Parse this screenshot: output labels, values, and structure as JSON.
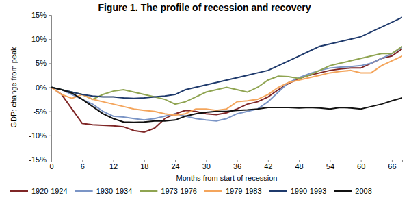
{
  "chart_data": {
    "type": "line",
    "title": "Figure 1. The profile of recession and recovery",
    "x_label": "Months from start of recession",
    "y_label": "GDP: change from peak",
    "x": [
      0,
      2,
      4,
      6,
      8,
      10,
      12,
      14,
      16,
      18,
      20,
      22,
      24,
      26,
      28,
      30,
      32,
      34,
      36,
      38,
      40,
      42,
      44,
      46,
      48,
      50,
      52,
      54,
      56,
      58,
      60,
      62,
      64,
      66,
      68
    ],
    "xlim": [
      0,
      68
    ],
    "xticks": [
      0,
      6,
      12,
      18,
      24,
      30,
      36,
      42,
      48,
      54,
      60,
      66
    ],
    "ylim": [
      -15,
      15
    ],
    "yticks": [
      {
        "value": -15,
        "label": "-15%"
      },
      {
        "value": -10,
        "label": "-10%"
      },
      {
        "value": -5,
        "label": "-5%"
      },
      {
        "value": 0,
        "label": "0%"
      },
      {
        "value": 5,
        "label": "5%"
      },
      {
        "value": 10,
        "label": "10%"
      },
      {
        "value": 15,
        "label": "15%"
      }
    ],
    "grid": false,
    "legend": "bottom",
    "series": [
      {
        "name": "1920-1924",
        "color": "#7f2626",
        "values": [
          0,
          -1.5,
          -4.5,
          -7.5,
          -7.8,
          -7.9,
          -8,
          -8.2,
          -9,
          -9.3,
          -8.5,
          -6.5,
          -5.5,
          -4.8,
          -5,
          -5.5,
          -5.7,
          -5.3,
          -4.5,
          -3.5,
          -3,
          -2,
          -0.5,
          0.8,
          1.8,
          2.5,
          3,
          3.5,
          3.8,
          4,
          4,
          5,
          6,
          6.5,
          8
        ]
      },
      {
        "name": "1930-1934",
        "color": "#7b95c6",
        "values": [
          0,
          -0.5,
          -1.5,
          -2.5,
          -3.5,
          -5,
          -6,
          -6.2,
          -6.5,
          -6.8,
          -6.5,
          -6,
          -5.5,
          -6,
          -6.5,
          -6.8,
          -7,
          -6.5,
          -5.5,
          -5,
          -4.5,
          -3,
          -1,
          1,
          2,
          2.8,
          3.5,
          4,
          4.2,
          4.3,
          4.5,
          5,
          6,
          7,
          8.3
        ]
      },
      {
        "name": "1973-1976",
        "color": "#8fa451",
        "values": [
          0,
          -0.5,
          -1,
          -1.5,
          -2.5,
          -1.5,
          -0.8,
          -0.5,
          -1,
          -1.5,
          -2,
          -2.5,
          -3.5,
          -3,
          -2,
          -1,
          -0.5,
          0,
          -0.5,
          -1,
          0,
          1.5,
          2.3,
          2.2,
          1.8,
          2.5,
          3.5,
          4.5,
          5,
          5.5,
          6,
          6.5,
          7,
          7,
          8.5
        ]
      },
      {
        "name": "1979-1983",
        "color": "#f4a55c",
        "values": [
          0,
          -1.5,
          -2.3,
          -1.5,
          -2.5,
          -3,
          -3.5,
          -4,
          -4.5,
          -4.8,
          -5,
          -5.5,
          -5.8,
          -5.5,
          -4.5,
          -4.5,
          -4.8,
          -4.5,
          -3,
          -2.8,
          -2.5,
          -1.5,
          0,
          1,
          1.5,
          2,
          2.5,
          3,
          3.3,
          3.5,
          3,
          3,
          4.5,
          5.5,
          6.5
        ]
      },
      {
        "name": "1990-1993",
        "color": "#1f3a6c",
        "values": [
          0,
          -0.5,
          -1,
          -1.5,
          -1.8,
          -2,
          -2,
          -2.2,
          -2.3,
          -2.2,
          -2,
          -1.8,
          -1.5,
          -0.5,
          0,
          0.5,
          1,
          1.5,
          2,
          2.5,
          3,
          3.5,
          4.5,
          5.5,
          6.5,
          7.5,
          8.5,
          9,
          9.5,
          10,
          10.5,
          11.5,
          12.5,
          13.5,
          14.5
        ]
      },
      {
        "name": "2008-",
        "color": "#111111",
        "values": [
          0,
          -0.5,
          -1.2,
          -2.5,
          -4,
          -5.5,
          -6.5,
          -7.2,
          -7.3,
          -7.2,
          -7,
          -7,
          -6.8,
          -6,
          -5.5,
          -5.2,
          -5,
          -5,
          -4.8,
          -4.7,
          -4.5,
          -4.2,
          -4.2,
          -4.2,
          -4.3,
          -4.2,
          -4.3,
          -4.5,
          -4.2,
          -4.3,
          -4.5,
          -4,
          -3.5,
          -2.8,
          -2.2
        ]
      }
    ]
  }
}
